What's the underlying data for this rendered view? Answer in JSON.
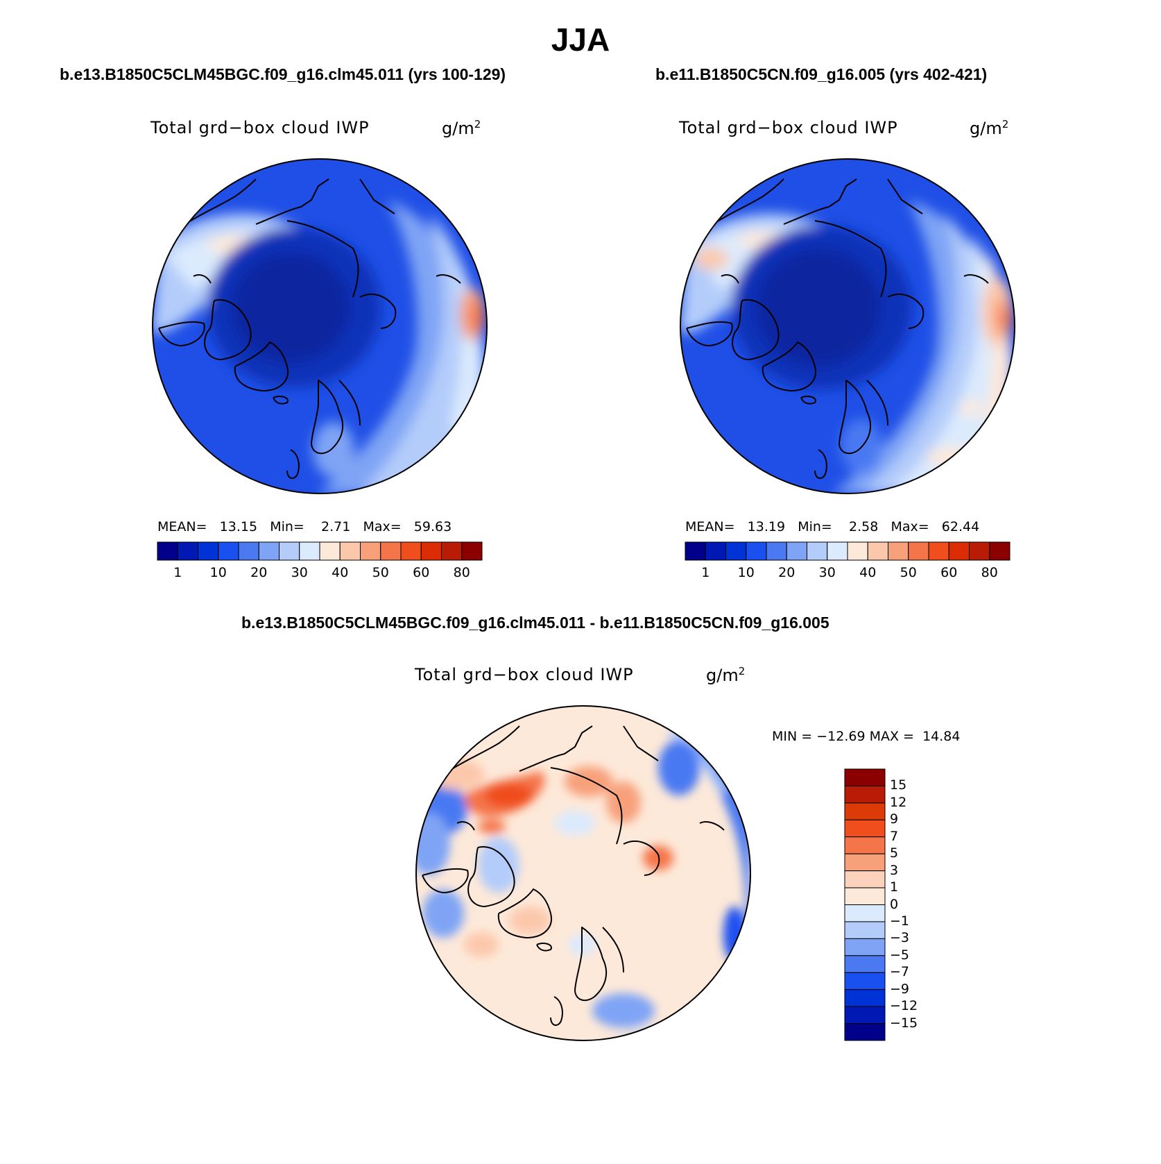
{
  "figure": {
    "season": "JJA",
    "panel_left": {
      "case_title": "b.e13.B1850C5CLM45BGC.f09_g16.clm45.011 (yrs 100-129)",
      "variable": "Total grd−box cloud IWP",
      "units": "g/m",
      "units_exp": "2",
      "mean_label": "MEAN=",
      "mean": "13.15",
      "min_label": "Min=",
      "min": "2.71",
      "max_label": "Max=",
      "max": "59.63"
    },
    "panel_right": {
      "case_title": "b.e11.B1850C5CN.f09_g16.005 (yrs 402-421)",
      "variable": "Total grd−box cloud IWP",
      "units": "g/m",
      "units_exp": "2",
      "mean_label": "MEAN=",
      "mean": "13.19",
      "min_label": "Min=",
      "min": "2.58",
      "max_label": "Max=",
      "max": "62.44"
    },
    "panel_diff": {
      "case_title": "b.e13.B1850C5CLM45BGC.f09_g16.clm45.011 - b.e11.B1850C5CN.f09_g16.005",
      "variable": "Total grd−box cloud IWP",
      "units": "g/m",
      "units_exp": "2",
      "min_label": "MIN =",
      "min": "−12.69",
      "max_label": "MAX =",
      "max": "14.84"
    },
    "abs_colorbar": {
      "colors": [
        "#00008b",
        "#0018b4",
        "#0033d6",
        "#1a4ff0",
        "#4a79f2",
        "#7fa4f5",
        "#b3ccfa",
        "#dbeafd",
        "#fde9d9",
        "#fcc8ac",
        "#f7a07a",
        "#f4754a",
        "#f04e1d",
        "#dc2c06",
        "#b81c06",
        "#8b0000"
      ],
      "tick_labels": [
        "1",
        "10",
        "20",
        "30",
        "40",
        "50",
        "60",
        "80"
      ]
    },
    "diff_colorbar": {
      "colors_top_to_bottom": [
        "#8b0000",
        "#b81c06",
        "#dc3a06",
        "#f04e1d",
        "#f4754a",
        "#f7a07a",
        "#fcd2bc",
        "#fde9d9",
        "#dbeafd",
        "#b3ccfa",
        "#7fa4f5",
        "#4a79f2",
        "#1a4ff0",
        "#0033d6",
        "#0018b4",
        "#00008b"
      ],
      "tick_labels": [
        "15",
        "12",
        "9",
        "7",
        "5",
        "3",
        "1",
        "0",
        "−1",
        "−3",
        "−5",
        "−7",
        "−9",
        "−12",
        "−15"
      ]
    }
  }
}
